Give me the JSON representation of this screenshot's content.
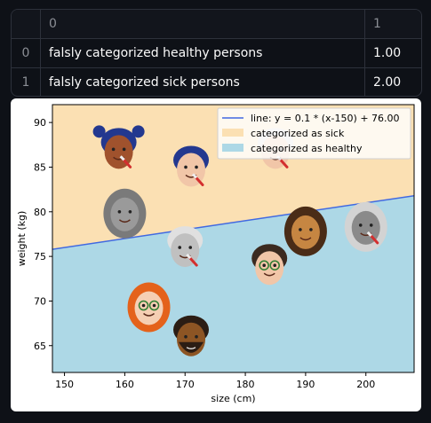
{
  "table": {
    "columns": [
      "",
      "0",
      "1"
    ],
    "rows": [
      {
        "index": "0",
        "label": "falsly categorized healthy persons",
        "value": "1.00"
      },
      {
        "index": "1",
        "label": "falsly categorized sick persons",
        "value": "2.00"
      }
    ]
  },
  "chart_data": {
    "type": "scatter",
    "xlabel": "size (cm)",
    "ylabel": "weight (kg)",
    "xlim": [
      148,
      208
    ],
    "ylim": [
      62,
      92
    ],
    "xticks": [
      150,
      160,
      170,
      180,
      190,
      200
    ],
    "yticks": [
      65,
      70,
      75,
      80,
      85,
      90
    ],
    "line": {
      "label": "line: y = 0.1 * (x-150) + 76.00",
      "slope": 0.1,
      "x0": 150,
      "y0": 76.0,
      "color": "#4169e1"
    },
    "regions": [
      {
        "name": "categorized as sick",
        "color": "#fbe0b3"
      },
      {
        "name": "categorized as healthy",
        "color": "#add8e6"
      }
    ],
    "legend_position": "top-right",
    "points": [
      {
        "x": 159,
        "y": 87,
        "face": "blue-bun-hair-thermometer"
      },
      {
        "x": 171,
        "y": 85,
        "face": "blue-hair-thermometer"
      },
      {
        "x": 185,
        "y": 87,
        "face": "grey-short-hair-thermometer"
      },
      {
        "x": 160,
        "y": 80,
        "face": "grey-hijab"
      },
      {
        "x": 190,
        "y": 78,
        "face": "curly-brown-hair"
      },
      {
        "x": 200,
        "y": 78.5,
        "face": "grey-long-hair-thermometer"
      },
      {
        "x": 170,
        "y": 76,
        "face": "grey-bald-thermometer"
      },
      {
        "x": 184,
        "y": 74,
        "face": "glasses-dark-hair"
      },
      {
        "x": 164,
        "y": 69.5,
        "face": "orange-hair-glasses"
      },
      {
        "x": 171,
        "y": 66,
        "face": "braided-hair-beard"
      }
    ]
  }
}
